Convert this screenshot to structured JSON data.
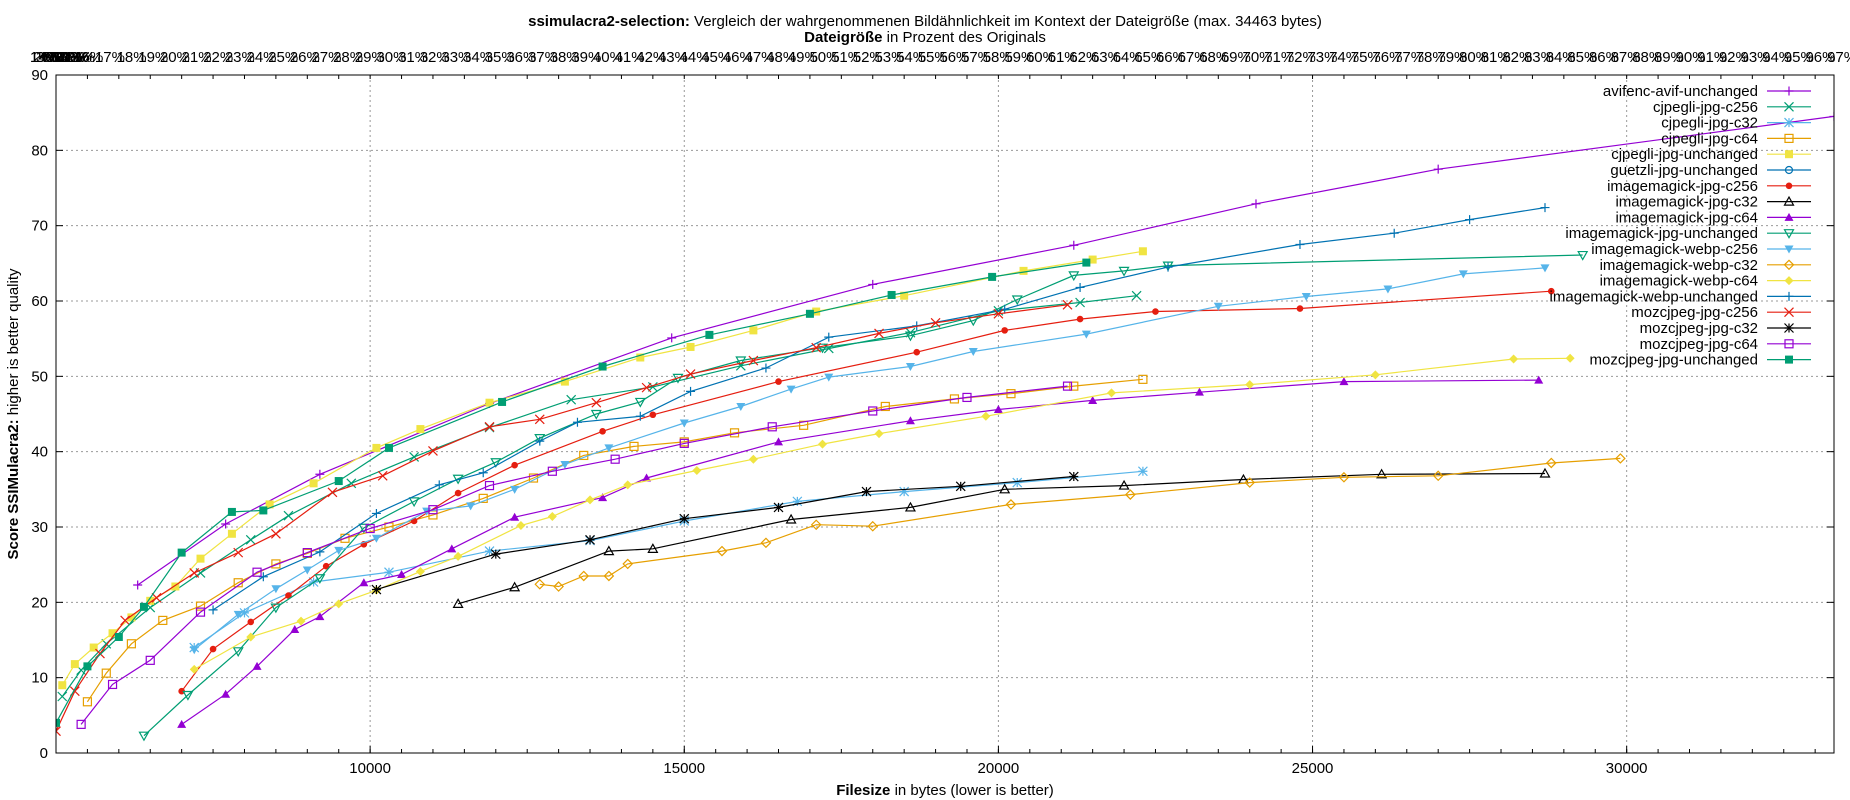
{
  "chart_data": {
    "type": "line",
    "title": {
      "bold": "ssimulacra2-selection:",
      "rest": " Vergleich der wahrgenommenen Bildähnlichkeit im Kontext der Dateigröße (max. 34463 bytes)"
    },
    "subtitle": {
      "bold": "Dateigröße",
      "rest": " in Prozent des Originals"
    },
    "xlabel": {
      "bold": "Filesize",
      "rest": " in bytes (lower is better)"
    },
    "ylabel": {
      "bold": "Score SSIMulacra2:",
      "rest": " higher is better quality"
    },
    "xlim": [
      5000,
      33300
    ],
    "ylim": [
      0,
      90
    ],
    "x_ticks": [
      10000,
      15000,
      20000,
      25000,
      30000
    ],
    "y_ticks": [
      0,
      10,
      20,
      30,
      40,
      50,
      60,
      70,
      80,
      90
    ],
    "grid": true,
    "legend_position": "top-right",
    "top_axis_note": "overlapping percentage tick labels 1%…100%",
    "series": [
      {
        "name": "avifenc-avif-unchanged",
        "color": "#9400d3",
        "marker": "plus",
        "x": [
          6300,
          7700,
          9200,
          11900,
          14800,
          18000,
          21200,
          24100,
          27000,
          33300
        ],
        "y": [
          22.3,
          30.4,
          37.0,
          46.4,
          55.1,
          62.2,
          67.4,
          72.9,
          77.5,
          84.5
        ]
      },
      {
        "name": "cjpegli-jpg-c256",
        "color": "#009e73",
        "marker": "x",
        "x": [
          5100,
          5400,
          5800,
          6500,
          7300,
          8100,
          8700,
          9700,
          10700,
          11900,
          13200,
          14500,
          15900,
          17300,
          18600,
          20000,
          21300,
          22200
        ],
        "y": [
          7.5,
          11.0,
          14.5,
          19.3,
          23.9,
          28.3,
          31.5,
          35.8,
          39.3,
          43.2,
          46.9,
          48.6,
          51.4,
          53.7,
          55.8,
          58.7,
          59.8,
          60.7
        ]
      },
      {
        "name": "cjpegli-jpg-c32",
        "color": "#56b4e9",
        "marker": "star",
        "x": [
          7200,
          8000,
          9100,
          10300,
          11900,
          13500,
          15000,
          16800,
          18500,
          20300,
          22300
        ],
        "y": [
          14.0,
          18.6,
          22.7,
          24.0,
          26.8,
          28.2,
          30.8,
          33.4,
          34.7,
          35.9,
          37.4
        ]
      },
      {
        "name": "cjpegli-jpg-c64",
        "color": "#e69f00",
        "marker": "square",
        "x": [
          5500,
          5800,
          6200,
          6700,
          7300,
          7900,
          8500,
          9000,
          9600,
          10300,
          11000,
          11800,
          12600,
          13400,
          14200,
          15000,
          15800,
          16900,
          18200,
          19300,
          20200,
          21200,
          22300
        ],
        "y": [
          6.8,
          10.6,
          14.5,
          17.6,
          19.5,
          22.6,
          25.1,
          26.5,
          28.5,
          30.0,
          31.6,
          33.8,
          36.5,
          39.5,
          40.7,
          41.3,
          42.5,
          43.5,
          46.0,
          47.0,
          47.7,
          48.7,
          49.6
        ]
      },
      {
        "name": "cjpegli-jpg-unchanged",
        "color": "#f0e442",
        "marker": "fsquare",
        "x": [
          5100,
          5300,
          5600,
          5900,
          6200,
          6500,
          6900,
          7300,
          7800,
          8400,
          9100,
          10100,
          10800,
          11900,
          13100,
          14300,
          15100,
          16100,
          17100,
          18500,
          20400,
          21500,
          22300
        ],
        "y": [
          9.0,
          11.8,
          14.0,
          15.9,
          18.0,
          20.2,
          22.1,
          25.8,
          29.1,
          33.0,
          35.8,
          40.5,
          43.0,
          46.5,
          49.3,
          52.5,
          53.9,
          56.1,
          58.6,
          60.7,
          64.0,
          65.5,
          66.6
        ]
      },
      {
        "name": "guetzli-jpg-unchanged",
        "color": "#0072b2",
        "marker": "circle",
        "x": [],
        "y": []
      },
      {
        "name": "imagemagick-jpg-c256",
        "color": "#e51e10",
        "marker": "fcircle",
        "x": [
          7000,
          7500,
          8100,
          8700,
          9300,
          9900,
          10700,
          11400,
          12300,
          13700,
          14500,
          16500,
          18700,
          20100,
          21300,
          22500,
          24800,
          28800
        ],
        "y": [
          8.2,
          13.8,
          17.4,
          20.9,
          24.8,
          27.7,
          30.8,
          34.5,
          38.2,
          42.7,
          44.9,
          49.3,
          53.2,
          56.1,
          57.6,
          58.6,
          59.0,
          61.3
        ]
      },
      {
        "name": "imagemagick-jpg-c32",
        "color": "#000000",
        "marker": "triangle",
        "x": [
          11400,
          12300,
          13800,
          14500,
          16700,
          18600,
          20100,
          22000,
          23900,
          26100,
          28700
        ],
        "y": [
          19.8,
          22.0,
          26.8,
          27.1,
          31.0,
          32.6,
          35.0,
          35.5,
          36.3,
          37.0,
          37.1
        ]
      },
      {
        "name": "imagemagick-jpg-c64",
        "color": "#9400d3",
        "marker": "ftriangle",
        "x": [
          7000,
          7700,
          8200,
          8800,
          9200,
          9900,
          10500,
          11300,
          12300,
          13700,
          14400,
          16500,
          18600,
          20000,
          21500,
          23200,
          25500,
          28600
        ],
        "y": [
          3.8,
          7.8,
          11.5,
          16.4,
          18.1,
          22.6,
          23.7,
          27.1,
          31.3,
          33.9,
          36.5,
          41.3,
          44.1,
          45.6,
          46.8,
          47.9,
          49.3,
          49.5
        ]
      },
      {
        "name": "imagemagick-jpg-unchanged",
        "color": "#009e73",
        "marker": "itriangle",
        "x": [
          6400,
          7100,
          7900,
          8500,
          9200,
          9900,
          10700,
          11400,
          12000,
          12700,
          13600,
          14300,
          14900,
          15900,
          17200,
          18600,
          19600,
          20300,
          21200,
          22000,
          22700,
          29300
        ],
        "y": [
          2.3,
          7.7,
          13.5,
          19.3,
          23.2,
          29.9,
          33.4,
          36.4,
          38.6,
          41.8,
          45.0,
          46.6,
          49.8,
          52.1,
          53.8,
          55.4,
          57.4,
          60.2,
          63.4,
          64.0,
          64.7,
          66.1
        ]
      },
      {
        "name": "imagemagick-webp-c256",
        "color": "#56b4e9",
        "marker": "fitriangle",
        "x": [
          7200,
          7900,
          8500,
          9000,
          9500,
          10100,
          10900,
          11600,
          12300,
          13100,
          13800,
          15000,
          15900,
          16700,
          17300,
          18600,
          19600,
          21400,
          23500,
          24900,
          26200,
          27400,
          28700
        ],
        "y": [
          13.7,
          18.4,
          21.8,
          24.3,
          26.9,
          28.5,
          32.1,
          32.8,
          35.0,
          38.3,
          40.5,
          43.8,
          46.0,
          48.3,
          49.9,
          51.3,
          53.3,
          55.6,
          59.3,
          60.6,
          61.6,
          63.6,
          64.4
        ]
      },
      {
        "name": "imagemagick-webp-c32",
        "color": "#e69f00",
        "marker": "diamond",
        "x": [
          12700,
          13000,
          13400,
          13800,
          14100,
          15600,
          16300,
          17100,
          18000,
          20200,
          22100,
          24000,
          25500,
          27000,
          28800,
          29900
        ],
        "y": [
          22.4,
          22.1,
          23.5,
          23.5,
          25.1,
          26.8,
          27.9,
          30.3,
          30.1,
          33.0,
          34.3,
          35.9,
          36.6,
          36.8,
          38.5,
          39.1
        ]
      },
      {
        "name": "imagemagick-webp-c64",
        "color": "#f0e442",
        "marker": "fdiamond",
        "x": [
          7200,
          8100,
          8900,
          9500,
          10100,
          10800,
          11400,
          12400,
          12900,
          13500,
          14100,
          15200,
          16100,
          17200,
          18100,
          19800,
          21800,
          24000,
          26000,
          28200,
          29100
        ],
        "y": [
          11.1,
          15.4,
          17.5,
          19.8,
          21.6,
          24.1,
          26.1,
          30.2,
          31.4,
          33.6,
          35.6,
          37.5,
          39.0,
          41.0,
          42.4,
          44.7,
          47.8,
          48.9,
          50.2,
          52.3,
          52.4
        ]
      },
      {
        "name": "imagemagick-webp-unchanged",
        "color": "#0072b2",
        "marker": "plus",
        "x": [
          7500,
          8300,
          9200,
          10100,
          11100,
          11800,
          12700,
          13300,
          14300,
          15100,
          16300,
          17300,
          18700,
          20100,
          21300,
          22700,
          24800,
          26300,
          27500,
          28700
        ],
        "y": [
          19.0,
          23.4,
          26.7,
          31.8,
          35.6,
          37.2,
          41.4,
          43.9,
          44.7,
          48.0,
          51.1,
          55.2,
          56.7,
          58.9,
          61.8,
          64.5,
          67.5,
          69.0,
          70.8,
          72.4
        ]
      },
      {
        "name": "mozcjpeg-jpg-c256",
        "color": "#e51e10",
        "marker": "x",
        "x": [
          5000,
          5300,
          5700,
          6100,
          6600,
          7200,
          7900,
          8500,
          9400,
          10200,
          11000,
          11900,
          12700,
          13600,
          14400,
          15100,
          16100,
          17100,
          18100,
          19000,
          20000,
          21100
        ],
        "y": [
          2.9,
          8.2,
          13.2,
          17.6,
          20.6,
          23.9,
          26.6,
          29.1,
          34.6,
          36.8,
          40.1,
          43.3,
          44.3,
          46.5,
          48.5,
          50.3,
          52.1,
          53.8,
          55.7,
          57.1,
          58.3,
          59.5
        ]
      },
      {
        "name": "mozcjpeg-jpg-c32",
        "color": "#000000",
        "marker": "star",
        "x": [
          10100,
          12000,
          13500,
          15000,
          16500,
          17900,
          19400,
          21200
        ],
        "y": [
          21.7,
          26.4,
          28.3,
          31.1,
          32.6,
          34.7,
          35.4,
          36.7
        ]
      },
      {
        "name": "mozcjpeg-jpg-c64",
        "color": "#9400d3",
        "marker": "square",
        "x": [
          5400,
          5900,
          6500,
          7300,
          8200,
          9000,
          10000,
          11000,
          11900,
          12900,
          13900,
          15000,
          16400,
          18000,
          19500,
          21100
        ],
        "y": [
          3.8,
          9.1,
          12.3,
          18.7,
          24.0,
          26.6,
          29.8,
          32.3,
          35.5,
          37.4,
          39.0,
          41.1,
          43.3,
          45.4,
          47.2,
          48.7
        ]
      },
      {
        "name": "mozcjpeg-jpg-unchanged",
        "color": "#009e73",
        "marker": "fsquare",
        "x": [
          5000,
          5500,
          6000,
          6400,
          7000,
          7800,
          8300,
          9500,
          10300,
          12100,
          13700,
          15400,
          17000,
          18300,
          19900,
          21400
        ],
        "y": [
          4.0,
          11.5,
          15.4,
          19.4,
          26.6,
          32.0,
          32.2,
          36.1,
          40.5,
          46.6,
          51.3,
          55.5,
          58.3,
          60.8,
          63.2,
          65.1
        ]
      }
    ]
  }
}
